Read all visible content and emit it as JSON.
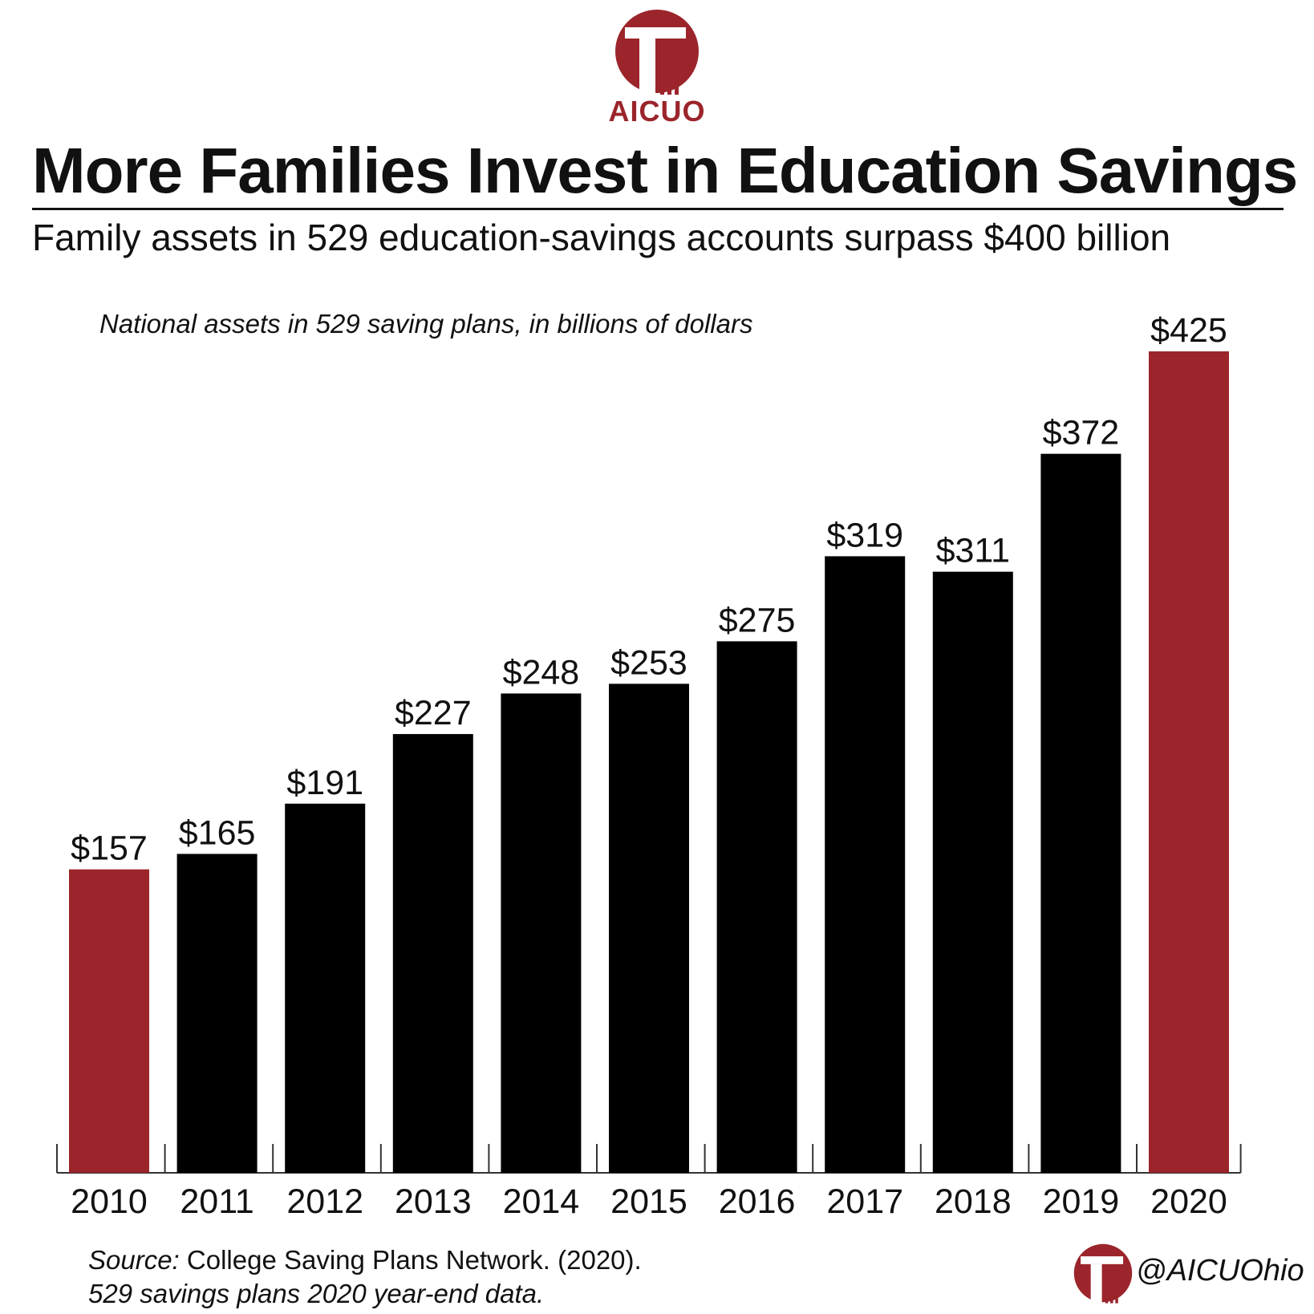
{
  "brand": {
    "name": "AICUO",
    "handle": "@AICUOhio",
    "accent_color": "#9b252b",
    "bar_color": "#000000"
  },
  "header": {
    "title": "More Families Invest in Education Savings",
    "subtitle": "Family assets in 529 education-savings accounts surpass $400 billion"
  },
  "chart_data": {
    "type": "bar",
    "caption": "National assets in 529 saving plans, in billions of dollars",
    "categories": [
      "2010",
      "2011",
      "2012",
      "2013",
      "2014",
      "2015",
      "2016",
      "2017",
      "2018",
      "2019",
      "2020"
    ],
    "values": [
      157,
      165,
      191,
      227,
      248,
      253,
      275,
      319,
      311,
      372,
      425
    ],
    "value_labels": [
      "$157",
      "$165",
      "$191",
      "$227",
      "$248",
      "$253",
      "$275",
      "$319",
      "$311",
      "$372",
      "$425"
    ],
    "highlighted": [
      "2010",
      "2020"
    ],
    "ylim": [
      0,
      425
    ],
    "grid": false
  },
  "footer": {
    "source_prefix": "Source:",
    "source_text": " College Saving Plans Network. (2020).",
    "source_line2": "529 savings plans 2020 year-end data."
  }
}
